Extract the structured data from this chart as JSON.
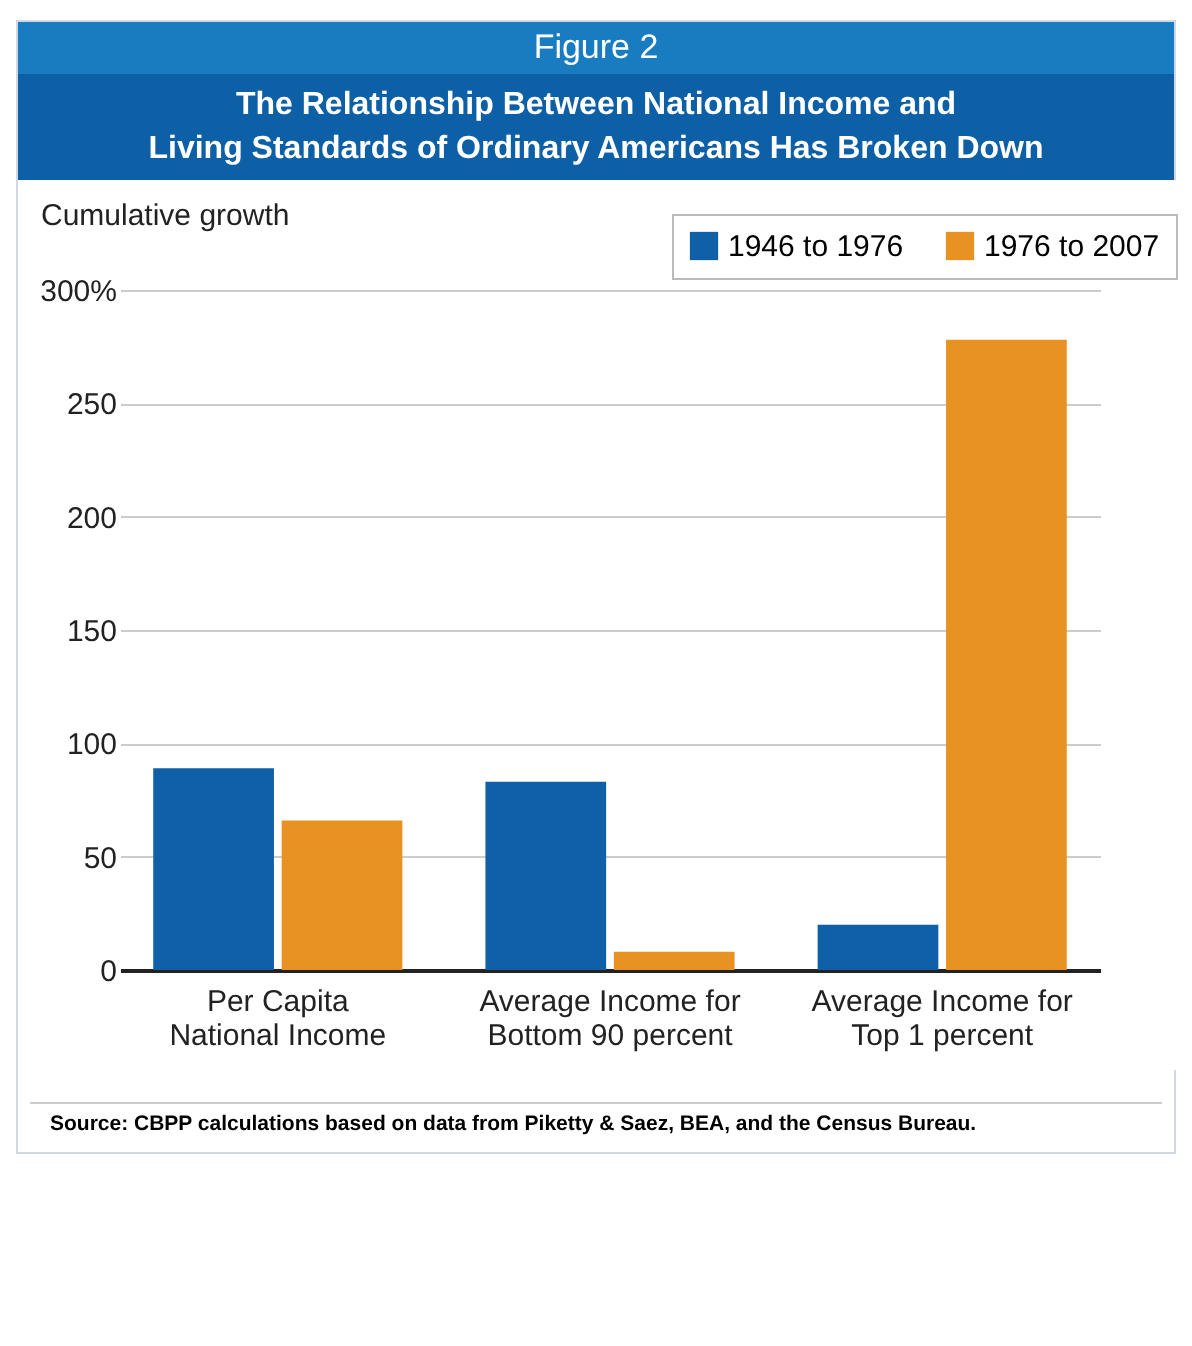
{
  "chart_data": {
    "type": "bar",
    "title": "Figure 2",
    "subtitle": "The Relationship Between National Income and\nLiving Standards of Ordinary Americans Has Broken Down",
    "ylabel": "Cumulative growth",
    "categories": [
      "Per Capita\nNational Income",
      "Average Income for\nBottom 90 percent",
      "Average Income for\nTop 1 percent"
    ],
    "series": [
      {
        "name": "1946 to 1976",
        "color": "#1060a8",
        "values": [
          89,
          83,
          20
        ]
      },
      {
        "name": "1976 to 2007",
        "color": "#e89224",
        "values": [
          66,
          8,
          278
        ]
      }
    ],
    "ylim": [
      0,
      300
    ],
    "yticks": [
      0,
      50,
      100,
      150,
      200,
      250,
      {
        "value": 300,
        "label": "300%"
      }
    ],
    "grid": "y",
    "legend": "top right",
    "annotations": [
      "Source: CBPP calculations based on data from Piketty & Saez, BEA, and the Census Bureau."
    ]
  }
}
